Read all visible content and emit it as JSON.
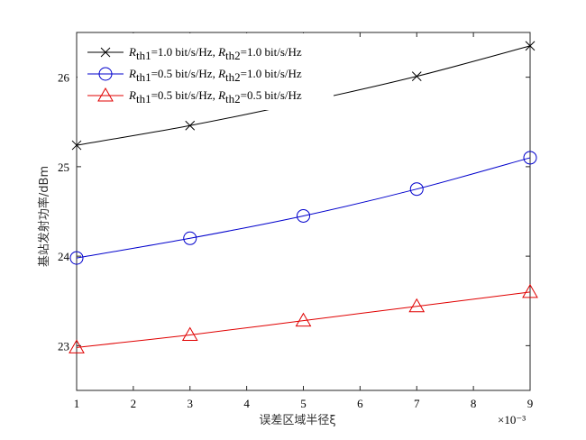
{
  "chart_data": {
    "type": "line",
    "x": [
      1,
      3,
      5,
      7,
      9
    ],
    "x_ticks": [
      "1",
      "2",
      "3",
      "4",
      "5",
      "6",
      "7",
      "8",
      "9"
    ],
    "y_ticks": [
      "23",
      "24",
      "25",
      "26"
    ],
    "x_multiplier": "×10⁻³",
    "xlabel": "误差区域半径ξ",
    "ylabel": "基站发射功率/dBm",
    "xlim": [
      1,
      9
    ],
    "ylim": [
      22.5,
      26.5
    ],
    "grid": false,
    "legend_position": "top-left",
    "series": [
      {
        "name": "Rth1=1.0 bit/s/Hz, Rth2=1.0 bit/s/Hz",
        "legend": {
          "r": "R",
          "s1": "th1",
          "v1": "=1.0 bit/s/Hz, ",
          "r2": "R",
          "s2": "th2",
          "v2": "=1.0 bit/s/Hz"
        },
        "values": [
          25.24,
          25.46,
          25.72,
          26.01,
          26.35
        ],
        "color": "#000000",
        "marker": "x"
      },
      {
        "name": "Rth1=0.5 bit/s/Hz, Rth2=1.0 bit/s/Hz",
        "legend": {
          "r": "R",
          "s1": "th1",
          "v1": "=0.5 bit/s/Hz, ",
          "r2": "R",
          "s2": "th2",
          "v2": "=1.0 bit/s/Hz"
        },
        "values": [
          23.98,
          24.2,
          24.45,
          24.75,
          25.1
        ],
        "color": "#0000cc",
        "marker": "circle"
      },
      {
        "name": "Rth1=0.5 bit/s/Hz, Rth2=0.5 bit/s/Hz",
        "legend": {
          "r": "R",
          "s1": "th1",
          "v1": "=0.5 bit/s/Hz, ",
          "r2": "R",
          "s2": "th2",
          "v2": "=0.5 bit/s/Hz"
        },
        "values": [
          22.98,
          23.12,
          23.28,
          23.44,
          23.6
        ],
        "color": "#e00000",
        "marker": "triangle"
      }
    ]
  }
}
